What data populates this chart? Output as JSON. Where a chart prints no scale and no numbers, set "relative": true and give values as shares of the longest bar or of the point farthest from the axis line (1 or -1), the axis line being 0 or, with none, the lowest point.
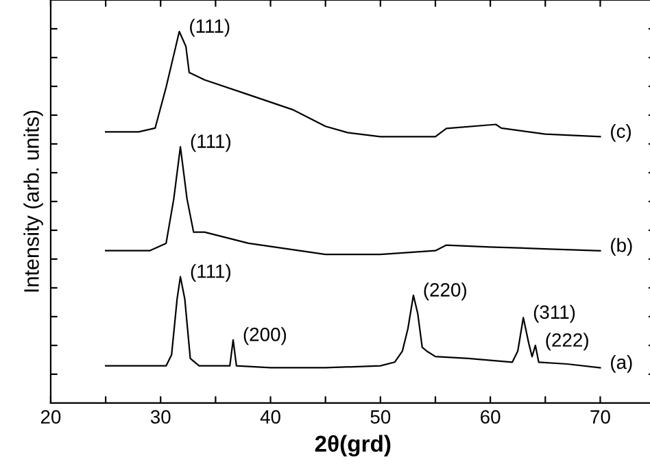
{
  "chart_data": {
    "type": "line",
    "relative": true,
    "xlabel": "2θ(grd)",
    "ylabel": "Intensity (arb. units)",
    "xlim": [
      20,
      75
    ],
    "xticks": [
      20,
      {
        "value": 25,
        "label": null
      },
      30,
      {
        "value": 35,
        "label": null
      },
      40,
      {
        "value": 45,
        "label": null
      },
      50,
      {
        "value": 55,
        "label": null
      },
      60,
      {
        "value": 65,
        "label": null
      },
      70
    ],
    "grid": false,
    "legend": false,
    "marker": "none",
    "line_style": "solid",
    "tick_labels": "x",
    "series": [
      {
        "color": "#000000",
        "x": [
          25,
          28,
          30.5,
          31.0,
          31.5,
          31.8,
          32.2,
          32.7,
          33.5,
          36.3,
          36.6,
          36.9,
          40,
          45,
          50,
          51.3,
          52,
          52.5,
          53,
          53.4,
          53.8,
          54.2,
          55,
          58,
          62,
          62.5,
          63,
          63.5,
          63.8,
          64.1,
          64.4,
          67,
          70
        ],
        "values": [
          0.1,
          0.1,
          0.1,
          0.13,
          0.28,
          0.34,
          0.28,
          0.12,
          0.1,
          0.1,
          0.17,
          0.1,
          0.095,
          0.095,
          0.1,
          0.11,
          0.14,
          0.2,
          0.29,
          0.24,
          0.15,
          0.14,
          0.125,
          0.12,
          0.11,
          0.14,
          0.23,
          0.16,
          0.125,
          0.155,
          0.11,
          0.105,
          0.095
        ]
      },
      {
        "color": "#000000",
        "x": [
          25,
          29,
          30.5,
          31.2,
          31.8,
          32.4,
          33,
          34,
          38,
          45,
          50,
          55,
          56,
          60,
          65,
          70
        ],
        "values": [
          0.41,
          0.41,
          0.43,
          0.55,
          0.69,
          0.55,
          0.46,
          0.46,
          0.43,
          0.4,
          0.4,
          0.41,
          0.425,
          0.42,
          0.415,
          0.41
        ]
      },
      {
        "color": "#000000",
        "x": [
          25,
          28,
          29.5,
          30.5,
          31.7,
          32.3,
          32.6,
          34,
          38,
          42,
          45,
          47,
          50,
          55,
          56,
          60.5,
          61,
          65,
          70
        ],
        "values": [
          0.73,
          0.73,
          0.74,
          0.85,
          1.0,
          0.96,
          0.89,
          0.87,
          0.83,
          0.79,
          0.745,
          0.728,
          0.717,
          0.717,
          0.739,
          0.75,
          0.74,
          0.724,
          0.717
        ]
      }
    ],
    "annotations": [
      {
        "text": "(111)",
        "x": 31.8,
        "y": 0.34
      },
      {
        "text": "(200)",
        "x": 36.6,
        "y": 0.17
      },
      {
        "text": "(220)",
        "x": 53,
        "y": 0.29
      },
      {
        "text": "(311)",
        "x": 63,
        "y": 0.23
      },
      {
        "text": "(222)",
        "x": 64.1,
        "y": 0.155
      },
      {
        "text": "(111)",
        "x": 31.8,
        "y": 0.69
      },
      {
        "text": "(111)",
        "x": 31.7,
        "y": 1.0
      },
      {
        "text": "(a)",
        "x": 70,
        "y": 0.095
      },
      {
        "text": "(b)",
        "x": 70,
        "y": 0.41
      },
      {
        "text": "(c)",
        "x": 70,
        "y": 0.717
      }
    ]
  }
}
